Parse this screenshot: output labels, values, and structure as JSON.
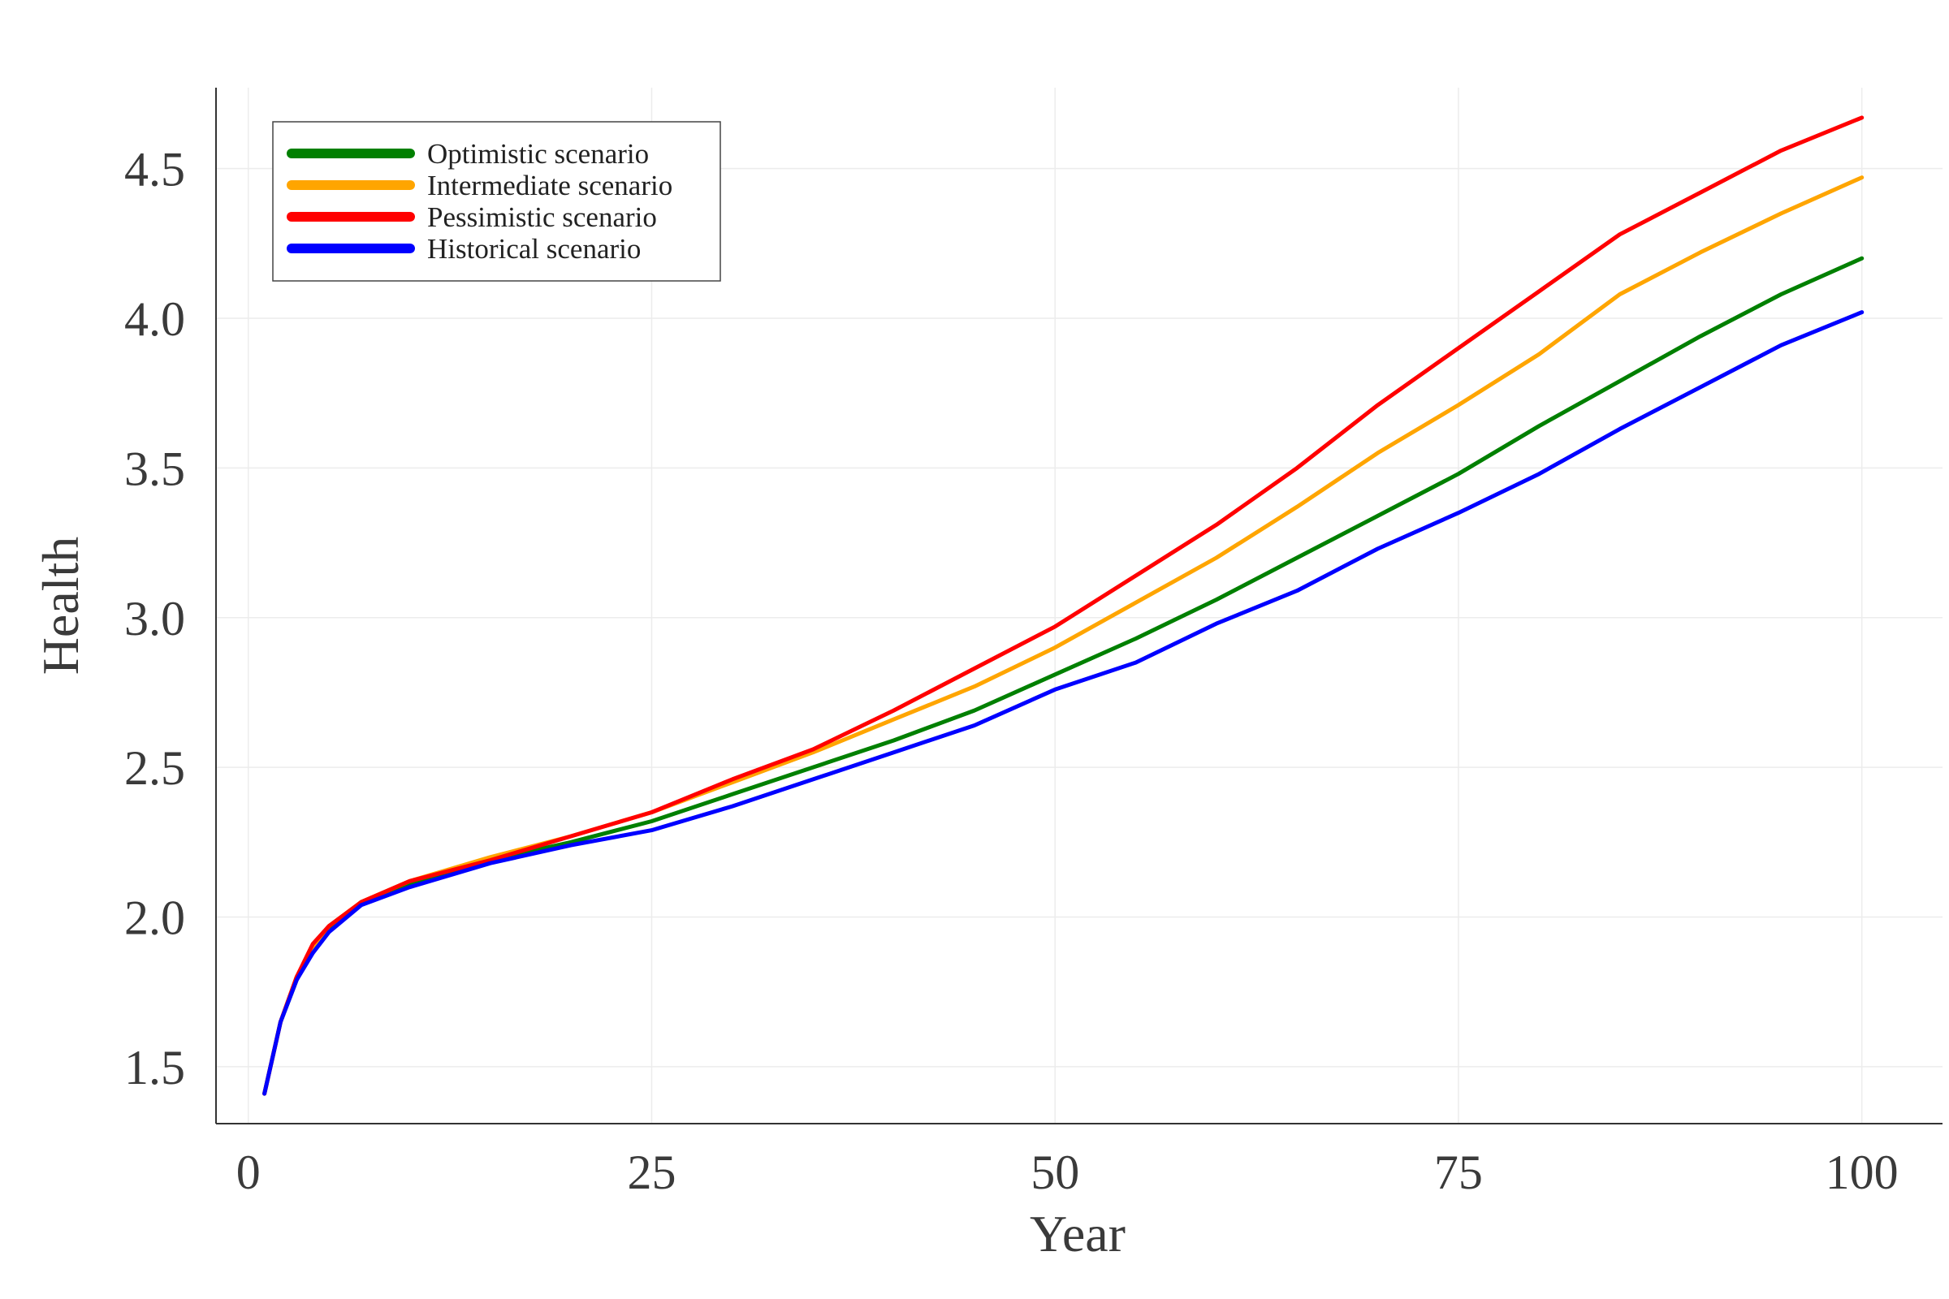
{
  "chart_data": {
    "type": "line",
    "title": "",
    "xlabel": "Year",
    "ylabel": "Health",
    "xlim": [
      -2,
      105
    ],
    "ylim": [
      1.31,
      4.77
    ],
    "x_ticks": [
      0,
      25,
      50,
      75,
      100
    ],
    "x_tick_labels": [
      "0",
      "25",
      "50",
      "75",
      "100"
    ],
    "y_ticks": [
      1.5,
      2.0,
      2.5,
      3.0,
      3.5,
      4.0,
      4.5
    ],
    "y_tick_labels": [
      "1.5",
      "2.0",
      "2.5",
      "3.0",
      "3.5",
      "4.0",
      "4.5"
    ],
    "grid": true,
    "legend_position": "top-left",
    "x": [
      1,
      2,
      3,
      4,
      5,
      7,
      10,
      15,
      20,
      25,
      30,
      35,
      40,
      45,
      50,
      55,
      60,
      65,
      70,
      75,
      80,
      85,
      90,
      95,
      100
    ],
    "series": [
      {
        "name": "Optimistic scenario",
        "color": "#008000",
        "values": [
          1.41,
          1.65,
          1.79,
          1.89,
          1.96,
          2.05,
          2.11,
          2.19,
          2.25,
          2.32,
          2.41,
          2.5,
          2.59,
          2.69,
          2.81,
          2.93,
          3.06,
          3.2,
          3.34,
          3.48,
          3.64,
          3.79,
          3.94,
          4.08,
          4.2
        ]
      },
      {
        "name": "Intermediate scenario",
        "color": "#FFA500",
        "values": [
          1.41,
          1.65,
          1.8,
          1.9,
          1.97,
          2.05,
          2.12,
          2.2,
          2.27,
          2.35,
          2.45,
          2.55,
          2.66,
          2.77,
          2.9,
          3.05,
          3.2,
          3.37,
          3.55,
          3.71,
          3.88,
          4.08,
          4.22,
          4.35,
          4.47
        ]
      },
      {
        "name": "Pessimistic scenario",
        "color": "#FF0000",
        "values": [
          1.41,
          1.65,
          1.8,
          1.91,
          1.97,
          2.05,
          2.12,
          2.19,
          2.27,
          2.35,
          2.46,
          2.56,
          2.69,
          2.83,
          2.97,
          3.14,
          3.31,
          3.5,
          3.71,
          3.9,
          4.09,
          4.28,
          4.42,
          4.56,
          4.67
        ]
      },
      {
        "name": "Historical scenario",
        "color": "#0000FF",
        "values": [
          1.41,
          1.65,
          1.79,
          1.88,
          1.95,
          2.04,
          2.1,
          2.18,
          2.24,
          2.29,
          2.37,
          2.46,
          2.55,
          2.64,
          2.76,
          2.85,
          2.98,
          3.09,
          3.23,
          3.35,
          3.48,
          3.63,
          3.77,
          3.91,
          4.02
        ]
      }
    ]
  }
}
